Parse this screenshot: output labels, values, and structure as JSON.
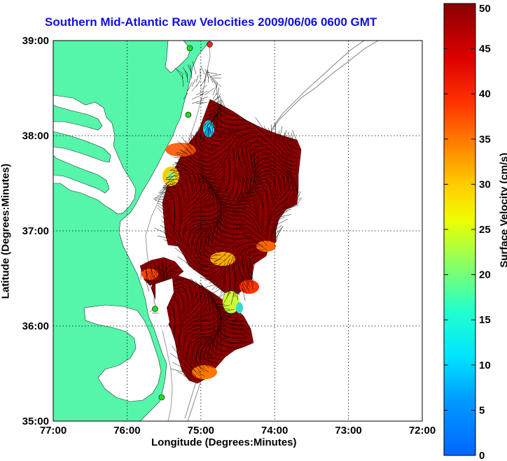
{
  "title": "Southern Mid-Atlantic Raw Velocities 2009/06/06 0600 GMT",
  "xlabel": "Longitude (Degrees:Minutes)",
  "ylabel": "Latitude (Degrees:Minutes)",
  "colorbar": {
    "label": "Surface Velocity (cm/s)",
    "ticks": [
      "0",
      "5",
      "10",
      "15",
      "20",
      "25",
      "30",
      "35",
      "40",
      "45",
      "50"
    ],
    "range": [
      0,
      50
    ],
    "colormap": "jet"
  },
  "axes": {
    "x_ticks": [
      "77:00",
      "76:00",
      "75:00",
      "74:00",
      "73:00",
      "72:00"
    ],
    "y_ticks": [
      "39:00",
      "38:00",
      "37:00",
      "36:00",
      "35:00"
    ],
    "xlim": [
      -77.0,
      -72.0
    ],
    "ylim": [
      35.0,
      39.0
    ],
    "grid": true
  },
  "colors": {
    "land": "#55f5aa",
    "title": "#1010e0",
    "field_dominant": "#8b0000",
    "isobath": "#999999",
    "station": "#22dd22",
    "station_alt": "#ee2222"
  },
  "stations": [
    {
      "lon": -75.15,
      "lat": 38.92,
      "color": "station"
    },
    {
      "lon": -74.88,
      "lat": 38.96,
      "color": "station_alt"
    },
    {
      "lon": -75.17,
      "lat": 38.22,
      "color": "station"
    },
    {
      "lon": -75.62,
      "lat": 36.18,
      "color": "station"
    },
    {
      "lon": -75.53,
      "lat": 35.25,
      "color": "station"
    }
  ]
}
